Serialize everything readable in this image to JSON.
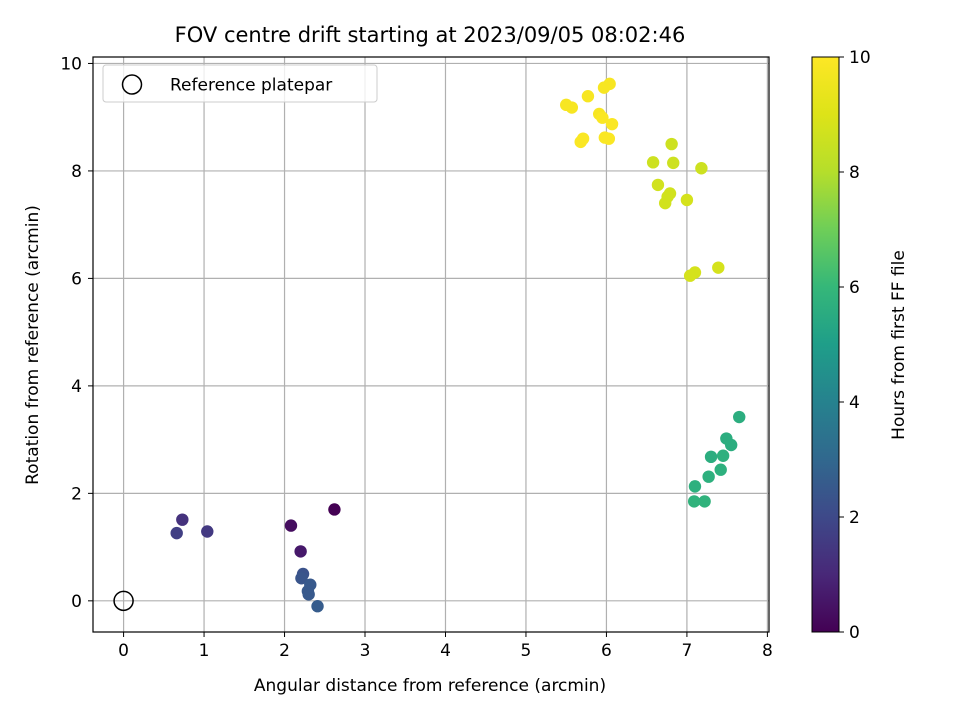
{
  "chart_data": {
    "type": "scatter",
    "title": "FOV centre drift starting at 2023/09/05 08:02:46",
    "xlabel": "Angular distance from reference (arcmin)",
    "ylabel": "Rotation from reference (arcmin)",
    "xlim": [
      -0.38,
      8.02
    ],
    "ylim": [
      -0.58,
      10.12
    ],
    "xticks": [
      "0",
      "1",
      "2",
      "3",
      "4",
      "5",
      "6",
      "7",
      "8"
    ],
    "yticks": [
      "0",
      "2",
      "4",
      "6",
      "8",
      "10"
    ],
    "grid": true,
    "legend": {
      "position": "upper-left",
      "label": "Reference platepar",
      "marker": "open-circle"
    },
    "reference_point": {
      "x": 0,
      "y": 0
    },
    "colorbar": {
      "label": "Hours from first FF file",
      "colormap": "viridis",
      "range": [
        0,
        10
      ],
      "ticks": [
        "0",
        "2",
        "4",
        "6",
        "8",
        "10"
      ]
    },
    "series": [
      {
        "x": [
          2.62,
          2.08,
          2.2,
          0.73,
          1.04,
          0.66,
          2.23,
          2.21,
          2.32,
          2.29,
          2.3,
          2.41,
          7.65,
          7.49,
          7.55,
          7.3,
          7.45,
          7.27,
          7.42,
          7.1,
          7.09,
          7.22,
          6.81,
          6.58,
          6.83,
          7.18,
          6.64,
          6.79,
          6.76,
          6.73,
          7.0,
          7.39,
          7.1,
          7.04,
          6.04,
          5.97,
          5.77,
          5.5,
          5.57,
          5.91,
          5.95,
          6.07,
          5.71,
          5.68,
          5.98,
          6.03
        ],
        "y": [
          1.7,
          1.4,
          0.92,
          1.51,
          1.29,
          1.26,
          0.5,
          0.42,
          0.3,
          0.18,
          0.12,
          -0.1,
          3.42,
          3.02,
          2.9,
          2.68,
          2.7,
          2.31,
          2.44,
          2.13,
          1.85,
          1.85,
          8.5,
          8.16,
          8.15,
          8.05,
          7.74,
          7.58,
          7.52,
          7.4,
          7.46,
          6.2,
          6.11,
          6.05,
          9.62,
          9.55,
          9.39,
          9.23,
          9.18,
          9.06,
          8.99,
          8.87,
          8.6,
          8.54,
          8.62,
          8.6
        ],
        "hours": [
          0.0,
          0.3,
          0.6,
          1.3,
          1.5,
          1.7,
          2.3,
          2.4,
          2.5,
          2.5,
          2.5,
          2.6,
          5.6,
          5.6,
          5.6,
          5.6,
          5.7,
          5.7,
          5.7,
          5.7,
          5.8,
          5.8,
          8.6,
          8.6,
          8.6,
          8.6,
          8.7,
          8.7,
          8.7,
          8.7,
          8.8,
          8.8,
          8.8,
          8.8,
          9.8,
          9.8,
          9.8,
          9.8,
          9.8,
          9.8,
          9.9,
          9.9,
          9.9,
          9.9,
          9.9,
          9.9
        ]
      }
    ]
  }
}
